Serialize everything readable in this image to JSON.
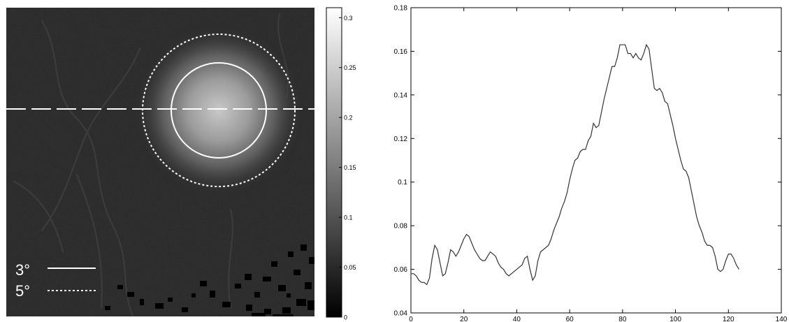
{
  "chart_data": [
    {
      "type": "heatmap",
      "colormap": "gray",
      "colorbar": {
        "range": [
          0,
          0.31
        ],
        "ticks": [
          0,
          0.05,
          0.1,
          0.15,
          0.2,
          0.25,
          0.3
        ],
        "tick_labels": [
          "0",
          "0.05",
          "0.1",
          "0.15",
          "0.2",
          "0.25",
          "0.3"
        ]
      },
      "legend": {
        "placement": "bottom-left",
        "entries": [
          {
            "label": "3°",
            "line_style": "solid"
          },
          {
            "label": "5°",
            "line_style": "dotted"
          }
        ]
      },
      "line_color": "#ffffff"
    },
    {
      "type": "line",
      "xlim": [
        0,
        140
      ],
      "ylim": [
        0.04,
        0.18
      ],
      "x_ticks": [
        0,
        20,
        40,
        60,
        80,
        100,
        120,
        140
      ],
      "x_tick_labels": [
        "0",
        "20",
        "40",
        "60",
        "80",
        "100",
        "120",
        "140"
      ],
      "y_ticks": [
        0.04,
        0.06,
        0.08,
        0.1,
        0.12,
        0.14,
        0.16,
        0.18
      ],
      "y_tick_labels": [
        "0.04",
        "0.06",
        "0.08",
        "0.1",
        "0.12",
        "0.14",
        "0.16",
        "0.18"
      ],
      "grid": false,
      "line_color": "#333333",
      "series": [
        {
          "x": [
            0,
            1,
            2,
            3,
            4,
            5,
            6,
            7,
            8,
            9,
            10,
            11,
            12,
            13,
            14,
            15,
            16,
            17,
            18,
            19,
            20,
            21,
            22,
            23,
            24,
            25,
            26,
            27,
            28,
            29,
            30,
            31,
            32,
            33,
            34,
            35,
            36,
            37,
            38,
            39,
            40,
            41,
            42,
            43,
            44,
            45,
            46,
            47,
            48,
            49,
            50,
            51,
            52,
            53,
            54,
            55,
            56,
            57,
            58,
            59,
            60,
            61,
            62,
            63,
            64,
            65,
            66,
            67,
            68,
            69,
            70,
            71,
            72,
            73,
            74,
            75,
            76,
            77,
            78,
            79,
            80,
            81,
            82,
            83,
            84,
            85,
            86,
            87,
            88,
            89,
            90,
            91,
            92,
            93,
            94,
            95,
            96,
            97,
            98,
            99,
            100,
            101,
            102,
            103,
            104,
            105,
            106,
            107,
            108,
            109,
            110,
            111,
            112,
            113,
            114,
            115,
            116,
            117,
            118,
            119,
            120,
            121,
            122,
            123,
            124
          ],
          "y": [
            0.058,
            0.058,
            0.057,
            0.055,
            0.054,
            0.054,
            0.053,
            0.056,
            0.065,
            0.071,
            0.069,
            0.063,
            0.057,
            0.058,
            0.063,
            0.069,
            0.068,
            0.066,
            0.068,
            0.071,
            0.074,
            0.076,
            0.075,
            0.072,
            0.069,
            0.067,
            0.065,
            0.064,
            0.064,
            0.066,
            0.068,
            0.067,
            0.066,
            0.063,
            0.061,
            0.06,
            0.058,
            0.057,
            0.058,
            0.059,
            0.06,
            0.061,
            0.062,
            0.065,
            0.066,
            0.06,
            0.055,
            0.057,
            0.064,
            0.068,
            0.069,
            0.07,
            0.071,
            0.074,
            0.078,
            0.081,
            0.084,
            0.088,
            0.091,
            0.095,
            0.101,
            0.106,
            0.11,
            0.111,
            0.114,
            0.115,
            0.115,
            0.119,
            0.121,
            0.127,
            0.125,
            0.126,
            0.132,
            0.138,
            0.143,
            0.148,
            0.153,
            0.153,
            0.157,
            0.163,
            0.163,
            0.163,
            0.159,
            0.159,
            0.157,
            0.159,
            0.157,
            0.156,
            0.159,
            0.163,
            0.161,
            0.152,
            0.143,
            0.142,
            0.143,
            0.141,
            0.137,
            0.136,
            0.131,
            0.126,
            0.12,
            0.115,
            0.11,
            0.106,
            0.105,
            0.102,
            0.096,
            0.09,
            0.084,
            0.08,
            0.077,
            0.073,
            0.071,
            0.071,
            0.07,
            0.066,
            0.06,
            0.059,
            0.06,
            0.064,
            0.067,
            0.067,
            0.065,
            0.062,
            0.06
          ]
        }
      ]
    }
  ]
}
